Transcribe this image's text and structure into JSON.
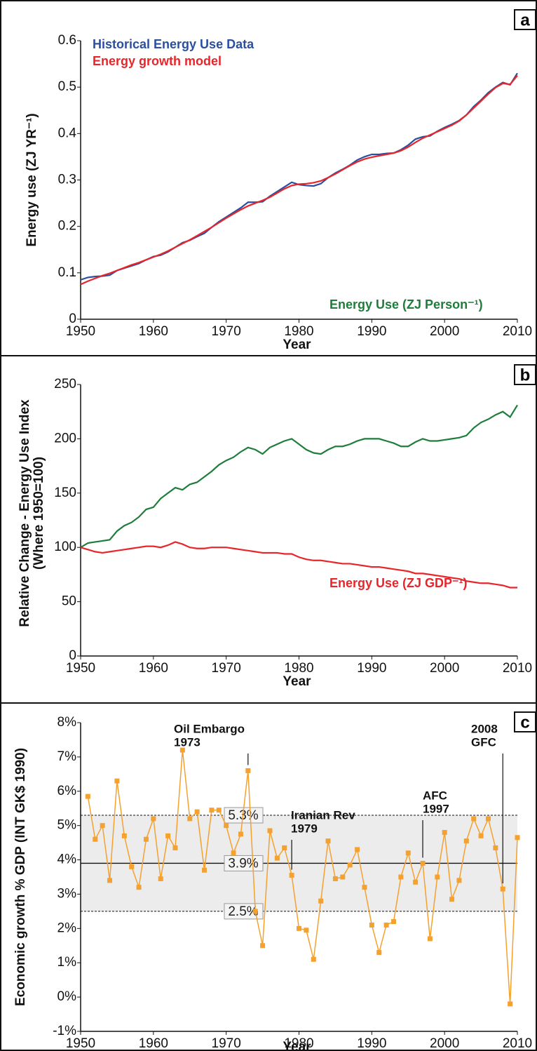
{
  "chart_data": [
    {
      "type": "line",
      "panel": "a",
      "xlabel": "Year",
      "ylabel": "Energy use (ZJ YR⁻¹)",
      "legend": "upper left",
      "x": [
        1950,
        1951,
        1952,
        1953,
        1954,
        1955,
        1956,
        1957,
        1958,
        1959,
        1960,
        1961,
        1962,
        1963,
        1964,
        1965,
        1966,
        1967,
        1968,
        1969,
        1970,
        1971,
        1972,
        1973,
        1974,
        1975,
        1976,
        1977,
        1978,
        1979,
        1980,
        1981,
        1982,
        1983,
        1984,
        1985,
        1986,
        1987,
        1988,
        1989,
        1990,
        1991,
        1992,
        1993,
        1994,
        1995,
        1996,
        1997,
        1998,
        1999,
        2000,
        2001,
        2002,
        2003,
        2004,
        2005,
        2006,
        2007,
        2008,
        2009,
        2010
      ],
      "xlim": [
        1950,
        2010
      ],
      "xticks": [
        1950,
        1960,
        1970,
        1980,
        1990,
        2000,
        2010
      ],
      "ylim": [
        0,
        0.6
      ],
      "yticks": [
        0,
        0.1,
        0.2,
        0.3,
        0.4,
        0.5,
        0.6
      ],
      "series": [
        {
          "name": "Historical Energy Use Data",
          "color": "#2b4fa0",
          "values": [
            0.085,
            0.09,
            0.092,
            0.093,
            0.095,
            0.105,
            0.11,
            0.115,
            0.12,
            0.128,
            0.135,
            0.138,
            0.145,
            0.155,
            0.165,
            0.17,
            0.178,
            0.185,
            0.198,
            0.21,
            0.22,
            0.23,
            0.24,
            0.252,
            0.252,
            0.253,
            0.265,
            0.275,
            0.285,
            0.295,
            0.29,
            0.288,
            0.287,
            0.292,
            0.305,
            0.315,
            0.323,
            0.332,
            0.343,
            0.35,
            0.355,
            0.355,
            0.357,
            0.358,
            0.365,
            0.375,
            0.388,
            0.393,
            0.395,
            0.405,
            0.413,
            0.42,
            0.428,
            0.44,
            0.458,
            0.472,
            0.488,
            0.5,
            0.51,
            0.505,
            0.53
          ]
        },
        {
          "name": "Energy growth model",
          "color": "#e8252a",
          "values": [
            0.075,
            0.082,
            0.088,
            0.094,
            0.099,
            0.105,
            0.111,
            0.117,
            0.122,
            0.128,
            0.134,
            0.14,
            0.147,
            0.155,
            0.163,
            0.171,
            0.18,
            0.189,
            0.198,
            0.208,
            0.218,
            0.227,
            0.236,
            0.244,
            0.25,
            0.256,
            0.263,
            0.272,
            0.281,
            0.288,
            0.291,
            0.292,
            0.294,
            0.298,
            0.305,
            0.313,
            0.322,
            0.331,
            0.339,
            0.345,
            0.349,
            0.352,
            0.355,
            0.358,
            0.363,
            0.371,
            0.381,
            0.39,
            0.397,
            0.404,
            0.411,
            0.418,
            0.427,
            0.44,
            0.455,
            0.47,
            0.485,
            0.499,
            0.508,
            0.506,
            0.525
          ]
        }
      ]
    },
    {
      "type": "line",
      "panel": "b",
      "xlabel": "Year",
      "ylabel": [
        "Relative Change - Energy Use Index",
        "(Where 1950=100)"
      ],
      "legend": "inline",
      "x": [
        1950,
        1951,
        1952,
        1953,
        1954,
        1955,
        1956,
        1957,
        1958,
        1959,
        1960,
        1961,
        1962,
        1963,
        1964,
        1965,
        1966,
        1967,
        1968,
        1969,
        1970,
        1971,
        1972,
        1973,
        1974,
        1975,
        1976,
        1977,
        1978,
        1979,
        1980,
        1981,
        1982,
        1983,
        1984,
        1985,
        1986,
        1987,
        1988,
        1989,
        1990,
        1991,
        1992,
        1993,
        1994,
        1995,
        1996,
        1997,
        1998,
        1999,
        2000,
        2001,
        2002,
        2003,
        2004,
        2005,
        2006,
        2007,
        2008,
        2009,
        2010
      ],
      "xlim": [
        1950,
        2010
      ],
      "xticks": [
        1950,
        1960,
        1970,
        1980,
        1990,
        2000,
        2010
      ],
      "ylim": [
        0,
        250
      ],
      "yticks": [
        0,
        50,
        100,
        150,
        200,
        250
      ],
      "series": [
        {
          "name": "Energy Use (ZJ Person⁻¹)",
          "color": "#1f7d3b",
          "values": [
            100,
            104,
            105,
            106,
            107,
            115,
            120,
            123,
            128,
            135,
            137,
            145,
            150,
            155,
            153,
            158,
            160,
            165,
            170,
            176,
            180,
            183,
            188,
            192,
            190,
            186,
            192,
            195,
            198,
            200,
            195,
            190,
            187,
            186,
            190,
            193,
            193,
            195,
            198,
            200,
            200,
            200,
            198,
            196,
            193,
            193,
            197,
            200,
            198,
            198,
            199,
            200,
            201,
            203,
            210,
            215,
            218,
            222,
            225,
            220,
            231
          ]
        },
        {
          "name": "Energy Use (ZJ GDP⁻¹)",
          "color": "#e8252a",
          "values": [
            100,
            98,
            96,
            95,
            96,
            97,
            98,
            99,
            100,
            101,
            101,
            100,
            102,
            105,
            103,
            100,
            99,
            99,
            100,
            100,
            100,
            99,
            98,
            97,
            96,
            95,
            95,
            95,
            94,
            94,
            91,
            89,
            88,
            88,
            87,
            86,
            85,
            85,
            84,
            83,
            82,
            82,
            81,
            80,
            79,
            78,
            76,
            76,
            75,
            74,
            73,
            72,
            71,
            69,
            68,
            67,
            67,
            66,
            65,
            63,
            63
          ]
        }
      ]
    },
    {
      "type": "line",
      "panel": "c",
      "xlabel": "Year",
      "ylabel": "Economic growth % GDP (INT GK$ 1990)",
      "marker": "square",
      "x": [
        1951,
        1952,
        1953,
        1954,
        1955,
        1956,
        1957,
        1958,
        1959,
        1960,
        1961,
        1962,
        1963,
        1964,
        1965,
        1966,
        1967,
        1968,
        1969,
        1970,
        1971,
        1972,
        1973,
        1974,
        1975,
        1976,
        1977,
        1978,
        1979,
        1980,
        1981,
        1982,
        1983,
        1984,
        1985,
        1986,
        1987,
        1988,
        1989,
        1990,
        1991,
        1992,
        1993,
        1994,
        1995,
        1996,
        1997,
        1998,
        1999,
        2000,
        2001,
        2002,
        2003,
        2004,
        2005,
        2006,
        2007,
        2008,
        2009,
        2010
      ],
      "xlim": [
        1950,
        2010
      ],
      "xticks": [
        1950,
        1960,
        1970,
        1980,
        1990,
        2000,
        2010
      ],
      "ylim": [
        -1,
        8
      ],
      "yticks": [
        {
          "value": -1,
          "label": "-1%"
        },
        {
          "value": 0,
          "label": "0%"
        },
        {
          "value": 1,
          "label": "1%"
        },
        {
          "value": 2,
          "label": "2%"
        },
        {
          "value": 3,
          "label": "3%"
        },
        {
          "value": 4,
          "label": "4%"
        },
        {
          "value": 5,
          "label": "5%"
        },
        {
          "value": 6,
          "label": "6%"
        },
        {
          "value": 7,
          "label": "7%"
        },
        {
          "value": 8,
          "label": "8%"
        }
      ],
      "reference_lines": [
        {
          "value": 5.3,
          "label": "5.3%",
          "style": "dashed"
        },
        {
          "value": 3.9,
          "label": "3.9%",
          "style": "solid"
        },
        {
          "value": 2.5,
          "label": "2.5%",
          "style": "dashed"
        }
      ],
      "annotations": [
        {
          "lines": [
            "Oil Embargo",
            "1973"
          ],
          "x": 1973
        },
        {
          "lines": [
            "Iranian Rev",
            "1979"
          ],
          "x": 1979
        },
        {
          "lines": [
            "AFC",
            "1997"
          ],
          "x": 1997
        },
        {
          "lines": [
            "2008",
            "GFC"
          ],
          "x": 2008
        }
      ],
      "series": [
        {
          "name": "Economic growth",
          "color": "#f4a12f",
          "values": [
            5.85,
            4.6,
            5.0,
            3.4,
            6.3,
            4.7,
            3.8,
            3.2,
            4.6,
            5.2,
            3.45,
            4.7,
            4.35,
            7.2,
            5.2,
            5.4,
            3.7,
            5.45,
            5.45,
            5.0,
            4.2,
            4.75,
            6.6,
            2.5,
            1.5,
            4.85,
            4.05,
            4.35,
            3.55,
            2.0,
            1.95,
            1.1,
            2.8,
            4.55,
            3.45,
            3.5,
            3.85,
            4.3,
            3.2,
            2.1,
            1.3,
            2.1,
            2.2,
            3.5,
            4.2,
            3.35,
            3.9,
            1.7,
            3.5,
            4.8,
            2.85,
            3.4,
            4.55,
            5.2,
            4.7,
            5.2,
            4.35,
            3.15,
            -0.2,
            4.65
          ]
        }
      ]
    }
  ]
}
